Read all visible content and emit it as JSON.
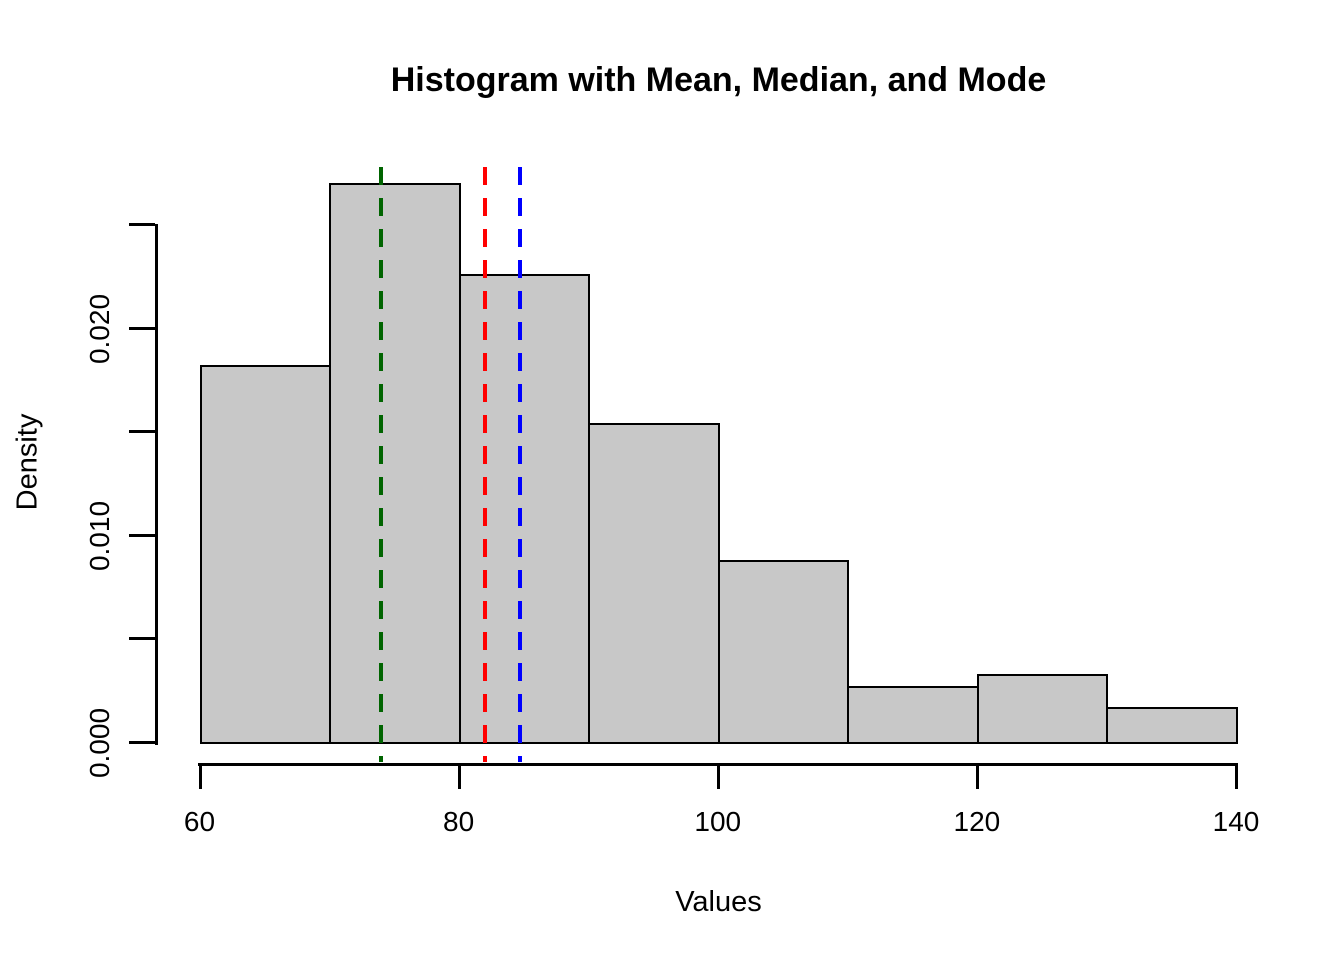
{
  "title": "Histogram with Mean, Median, and Mode",
  "chart_data": {
    "type": "histogram",
    "title": "Histogram with Mean, Median, and Mode",
    "xlabel": "Values",
    "ylabel": "Density",
    "bin_edges": [
      60,
      70,
      80,
      90,
      100,
      110,
      120,
      130,
      140
    ],
    "densities": [
      0.0182,
      0.027,
      0.0226,
      0.0154,
      0.0088,
      0.0027,
      0.0033,
      0.0017
    ],
    "x_ticks": [
      60,
      80,
      100,
      120,
      140
    ],
    "x_tick_labels": [
      "60",
      "80",
      "100",
      "120",
      "140"
    ],
    "y_ticks": [
      0,
      0.005,
      0.01,
      0.015,
      0.02,
      0.025
    ],
    "y_tick_labels": [
      "0.000",
      "",
      "0.010",
      "",
      "0.020",
      ""
    ],
    "xlim": [
      60,
      140
    ],
    "ylim": [
      0,
      0.027
    ],
    "grid": false,
    "legend": false,
    "bar_fill": "#C8C8C8",
    "bar_border": "#000000",
    "axis_color": "#000000",
    "background": "#FFFFFF",
    "reference_lines": [
      {
        "name": "mode",
        "value": 74.0,
        "color": "#006400",
        "style": "dashed"
      },
      {
        "name": "median",
        "value": 82.0,
        "color": "#FF0000",
        "style": "dashed"
      },
      {
        "name": "mean",
        "value": 84.7,
        "color": "#0000FF",
        "style": "dashed"
      }
    ]
  }
}
